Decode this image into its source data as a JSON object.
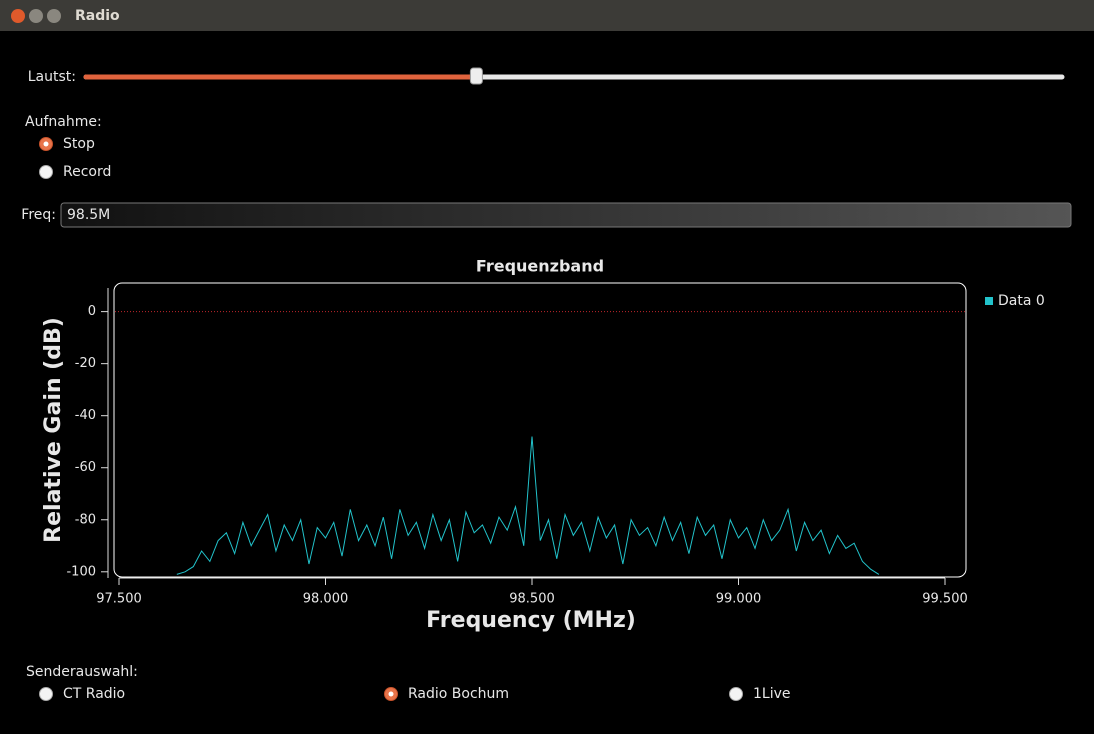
{
  "window": {
    "title": "Radio"
  },
  "volume": {
    "label": "Lautst:",
    "value": 0.4,
    "range": [
      0,
      1
    ]
  },
  "recording": {
    "label": "Aufnahme:",
    "options": [
      "Stop",
      "Record"
    ],
    "selected": 0
  },
  "frequency": {
    "label": "Freq:",
    "value": "98.5M"
  },
  "chart_data": {
    "type": "line",
    "title": "Frequenzband",
    "x_label": "Frequency (MHz)",
    "y_label": "Relative Gain (dB)",
    "x": [
      97.64,
      97.66,
      97.68,
      97.7,
      97.72,
      97.74,
      97.76,
      97.78,
      97.8,
      97.82,
      97.84,
      97.86,
      97.88,
      97.9,
      97.92,
      97.94,
      97.96,
      97.98,
      98.0,
      98.02,
      98.04,
      98.06,
      98.08,
      98.1,
      98.12,
      98.14,
      98.16,
      98.18,
      98.2,
      98.22,
      98.24,
      98.26,
      98.28,
      98.3,
      98.32,
      98.34,
      98.36,
      98.38,
      98.4,
      98.42,
      98.44,
      98.46,
      98.48,
      98.5,
      98.52,
      98.54,
      98.56,
      98.58,
      98.6,
      98.62,
      98.64,
      98.66,
      98.68,
      98.7,
      98.72,
      98.74,
      98.76,
      98.78,
      98.8,
      98.82,
      98.84,
      98.86,
      98.88,
      98.9,
      98.92,
      98.94,
      98.96,
      98.98,
      99.0,
      99.02,
      99.04,
      99.06,
      99.08,
      99.1,
      99.12,
      99.14,
      99.16,
      99.18,
      99.2,
      99.22,
      99.24,
      99.26,
      99.28,
      99.3,
      99.32,
      99.34
    ],
    "series": [
      {
        "name": "Data 0",
        "color": "#22c3cb",
        "values": [
          -101,
          -100,
          -98,
          -92,
          -96,
          -88,
          -85,
          -93,
          -81,
          -90,
          -84,
          -78,
          -92,
          -82,
          -88,
          -80,
          -97,
          -83,
          -87,
          -81,
          -94,
          -76,
          -88,
          -82,
          -90,
          -79,
          -95,
          -76,
          -86,
          -81,
          -91,
          -78,
          -88,
          -80,
          -96,
          -77,
          -85,
          -82,
          -89,
          -79,
          -84,
          -75,
          -90,
          -48,
          -88,
          -80,
          -95,
          -78,
          -86,
          -81,
          -92,
          -79,
          -87,
          -82,
          -97,
          -80,
          -86,
          -83,
          -90,
          -79,
          -88,
          -81,
          -93,
          -79,
          -86,
          -82,
          -95,
          -80,
          -87,
          -83,
          -91,
          -80,
          -88,
          -84,
          -76,
          -92,
          -81,
          -88,
          -84,
          -93,
          -86,
          -91,
          -89,
          -96,
          -99,
          -101
        ]
      }
    ],
    "xlim": [
      97.5,
      99.5
    ],
    "xticks": [
      {
        "value": 97.5,
        "label": "97.500"
      },
      {
        "value": 98,
        "label": "98.000"
      },
      {
        "value": 98.5,
        "label": "98.500"
      },
      {
        "value": 99,
        "label": "99.000"
      },
      {
        "value": 99.5,
        "label": "99.500"
      }
    ],
    "ylim": [
      -102,
      11
    ],
    "yticks": [
      -100,
      -80,
      -60,
      -40,
      -20,
      0
    ],
    "reference_line": {
      "value": 0,
      "color": "#c0262b"
    },
    "legend": "right"
  },
  "station": {
    "label": "Senderauswahl:",
    "options": [
      "CT Radio",
      "Radio Bochum",
      "1Live"
    ],
    "selected": 1
  }
}
